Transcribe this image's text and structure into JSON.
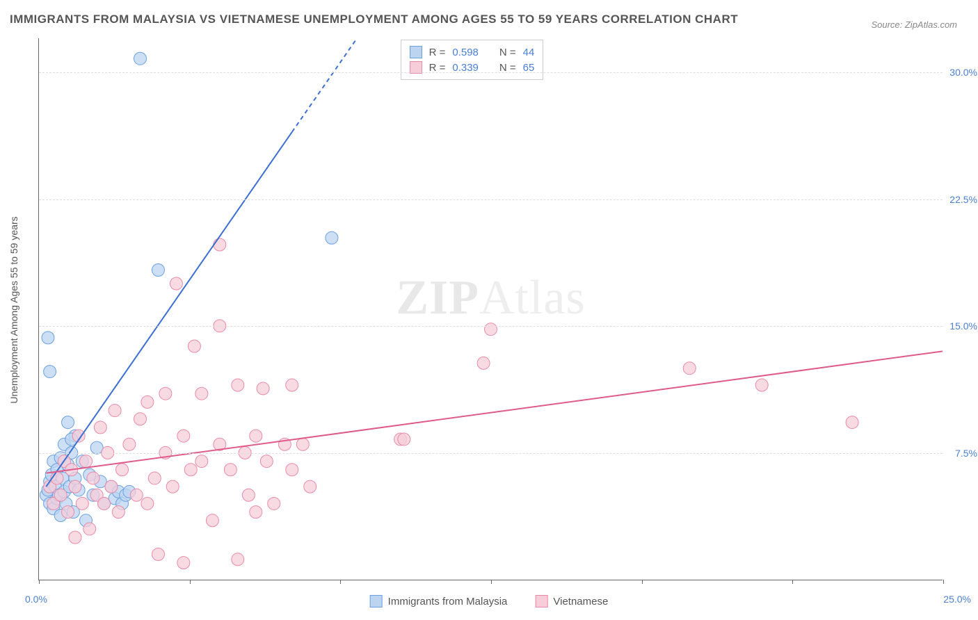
{
  "title": "IMMIGRANTS FROM MALAYSIA VS VIETNAMESE UNEMPLOYMENT AMONG AGES 55 TO 59 YEARS CORRELATION CHART",
  "source": "Source: ZipAtlas.com",
  "watermark_a": "ZIP",
  "watermark_b": "Atlas",
  "chart": {
    "type": "scatter",
    "xlim": [
      0,
      25
    ],
    "ylim": [
      0,
      32
    ],
    "x_origin_label": "0.0%",
    "x_max_label": "25.0%",
    "y_ticks": [
      7.5,
      15.0,
      22.5,
      30.0
    ],
    "y_tick_labels": [
      "7.5%",
      "15.0%",
      "22.5%",
      "30.0%"
    ],
    "x_tick_positions": [
      0,
      4.17,
      8.33,
      12.5,
      16.67,
      20.83,
      25
    ],
    "yaxis_title": "Unemployment Among Ages 55 to 59 years",
    "grid_color": "#dddddd",
    "background_color": "#ffffff",
    "axis_color": "#666666",
    "tick_label_color": "#4a7fd4",
    "axis_title_color": "#555555"
  },
  "series": [
    {
      "name": "Immigrants from Malaysia",
      "marker_fill": "#bcd4f0",
      "marker_stroke": "#6a9fe0",
      "marker_radius": 9,
      "line_color": "#3b6fd0",
      "line_width": 2,
      "R": "0.598",
      "N": "44",
      "trend": {
        "x1": 0.2,
        "y1": 5.5,
        "x2": 8.8,
        "y2": 32,
        "dash_from_x": 7.0
      },
      "points": [
        [
          0.2,
          5.0
        ],
        [
          0.25,
          5.3
        ],
        [
          0.3,
          4.5
        ],
        [
          0.3,
          5.8
        ],
        [
          0.35,
          6.2
        ],
        [
          0.4,
          4.2
        ],
        [
          0.4,
          7.0
        ],
        [
          0.45,
          5.5
        ],
        [
          0.5,
          4.8
        ],
        [
          0.5,
          6.5
        ],
        [
          0.55,
          5.0
        ],
        [
          0.6,
          7.2
        ],
        [
          0.6,
          3.8
        ],
        [
          0.65,
          6.0
        ],
        [
          0.7,
          5.2
        ],
        [
          0.7,
          8.0
        ],
        [
          0.75,
          4.5
        ],
        [
          0.8,
          6.8
        ],
        [
          0.8,
          9.3
        ],
        [
          0.85,
          5.5
        ],
        [
          0.9,
          7.5
        ],
        [
          0.95,
          4.0
        ],
        [
          1.0,
          6.0
        ],
        [
          1.0,
          8.5
        ],
        [
          1.1,
          5.3
        ],
        [
          1.2,
          7.0
        ],
        [
          1.3,
          3.5
        ],
        [
          1.4,
          6.2
        ],
        [
          1.5,
          5.0
        ],
        [
          1.6,
          7.8
        ],
        [
          1.8,
          4.5
        ],
        [
          2.0,
          5.5
        ],
        [
          2.1,
          4.8
        ],
        [
          2.2,
          5.2
        ],
        [
          2.3,
          4.5
        ],
        [
          0.3,
          12.3
        ],
        [
          0.25,
          14.3
        ],
        [
          0.9,
          8.3
        ],
        [
          2.4,
          5.0
        ],
        [
          2.8,
          30.8
        ],
        [
          3.3,
          18.3
        ],
        [
          2.5,
          5.2
        ],
        [
          1.7,
          5.8
        ],
        [
          8.1,
          20.2
        ]
      ]
    },
    {
      "name": "Vietnamese",
      "marker_fill": "#f6cdd9",
      "marker_stroke": "#e88aa8",
      "marker_radius": 9,
      "line_color": "#e05a8a",
      "line_width": 2,
      "R": "0.339",
      "N": "65",
      "trend": {
        "x1": 0.2,
        "y1": 6.3,
        "x2": 25,
        "y2": 13.5,
        "dash_from_x": 999
      },
      "points": [
        [
          0.3,
          5.5
        ],
        [
          0.4,
          4.5
        ],
        [
          0.5,
          6.0
        ],
        [
          0.6,
          5.0
        ],
        [
          0.7,
          7.0
        ],
        [
          0.8,
          4.0
        ],
        [
          0.9,
          6.5
        ],
        [
          1.0,
          5.5
        ],
        [
          1.1,
          8.5
        ],
        [
          1.2,
          4.5
        ],
        [
          1.3,
          7.0
        ],
        [
          1.4,
          3.0
        ],
        [
          1.5,
          6.0
        ],
        [
          1.6,
          5.0
        ],
        [
          1.7,
          9.0
        ],
        [
          1.8,
          4.5
        ],
        [
          1.9,
          7.5
        ],
        [
          2.0,
          5.5
        ],
        [
          2.1,
          10.0
        ],
        [
          2.2,
          4.0
        ],
        [
          2.3,
          6.5
        ],
        [
          2.5,
          8.0
        ],
        [
          2.7,
          5.0
        ],
        [
          2.8,
          9.5
        ],
        [
          3.0,
          4.5
        ],
        [
          3.0,
          10.5
        ],
        [
          3.2,
          6.0
        ],
        [
          3.3,
          1.5
        ],
        [
          3.5,
          7.5
        ],
        [
          3.5,
          11.0
        ],
        [
          3.7,
          5.5
        ],
        [
          3.8,
          17.5
        ],
        [
          4.0,
          8.5
        ],
        [
          4.0,
          1.0
        ],
        [
          4.2,
          6.5
        ],
        [
          4.3,
          13.8
        ],
        [
          4.5,
          7.0
        ],
        [
          4.5,
          11.0
        ],
        [
          4.8,
          3.5
        ],
        [
          5.0,
          8.0
        ],
        [
          5.0,
          15.0
        ],
        [
          5.3,
          6.5
        ],
        [
          5.5,
          11.5
        ],
        [
          5.7,
          7.5
        ],
        [
          5.8,
          5.0
        ],
        [
          6.0,
          8.5
        ],
        [
          6.0,
          4.0
        ],
        [
          6.2,
          11.3
        ],
        [
          6.3,
          7.0
        ],
        [
          6.5,
          4.5
        ],
        [
          5.0,
          19.8
        ],
        [
          6.8,
          8.0
        ],
        [
          7.0,
          6.5
        ],
        [
          7.0,
          11.5
        ],
        [
          7.3,
          8.0
        ],
        [
          7.5,
          5.5
        ],
        [
          5.5,
          1.2
        ],
        [
          10.0,
          8.3
        ],
        [
          10.1,
          8.3
        ],
        [
          12.5,
          14.8
        ],
        [
          12.3,
          12.8
        ],
        [
          18.0,
          12.5
        ],
        [
          20.0,
          11.5
        ],
        [
          22.5,
          9.3
        ],
        [
          1.0,
          2.5
        ]
      ]
    }
  ],
  "legend_top_labels": {
    "r_prefix": "R = ",
    "n_prefix": "N = "
  },
  "legend_bottom": [
    {
      "label": "Immigrants from Malaysia",
      "fill": "#bcd4f0",
      "stroke": "#6a9fe0"
    },
    {
      "label": "Vietnamese",
      "fill": "#f6cdd9",
      "stroke": "#e88aa8"
    }
  ]
}
